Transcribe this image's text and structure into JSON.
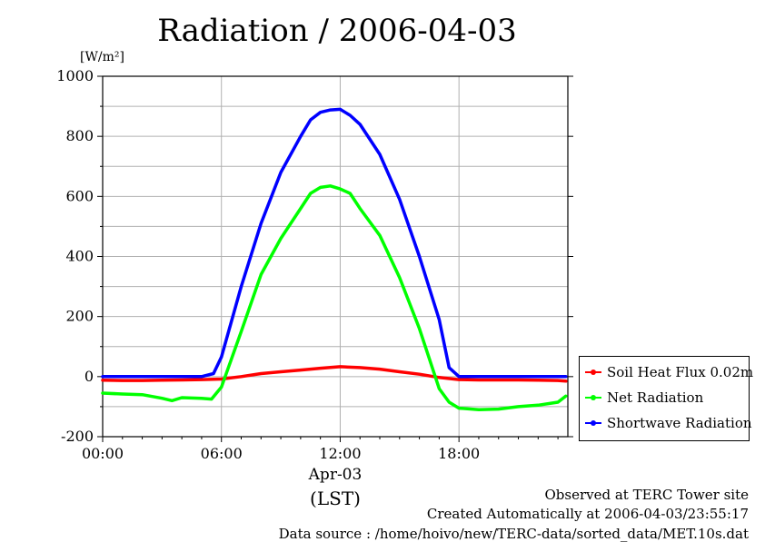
{
  "title": "Radiation / 2006-04-03",
  "unit_label": "[W/m²]",
  "date_label": "Apr-03",
  "tz_label": "(LST)",
  "footer": [
    "Observed at TERC Tower site",
    "Created Automatically at 2006-04-03/23:55:17",
    "Data source : /home/hoivo/new/TERC-data/sorted_data/MET.10s.dat"
  ],
  "chart_data": {
    "type": "line",
    "title": "Radiation / 2006-04-03",
    "ylabel": "[W/m²]",
    "xlabel": "(LST)",
    "xlim": [
      0,
      23.5
    ],
    "ylim": [
      -200,
      1000
    ],
    "xticks": [
      {
        "value": 0,
        "label": "00:00"
      },
      {
        "value": 6,
        "label": "06:00"
      },
      {
        "value": 12,
        "label": "12:00"
      },
      {
        "value": 18,
        "label": "18:00"
      }
    ],
    "yticks": [
      -200,
      0,
      200,
      400,
      600,
      800,
      1000
    ],
    "grid": true,
    "legend_position": "lower-right-outside",
    "series": [
      {
        "name": "Soil Heat Flux 0.02m",
        "color": "#ff0000",
        "x": [
          0,
          1,
          2,
          3,
          4,
          5,
          6,
          7,
          8,
          9,
          10,
          11,
          12,
          13,
          14,
          15,
          16,
          17,
          18,
          19,
          20,
          21,
          22,
          23,
          23.4
        ],
        "y": [
          -12,
          -13,
          -13,
          -12,
          -11,
          -10,
          -8,
          0,
          10,
          16,
          22,
          28,
          33,
          30,
          25,
          16,
          8,
          -3,
          -10,
          -11,
          -11,
          -11,
          -12,
          -13,
          -15
        ]
      },
      {
        "name": "Net Radiation",
        "color": "#00ff00",
        "x": [
          0,
          1,
          2,
          3,
          3.5,
          4,
          5,
          5.5,
          6,
          7,
          8,
          9,
          10,
          10.5,
          11,
          11.5,
          12,
          12.5,
          13,
          14,
          15,
          16,
          17,
          17.5,
          18,
          19,
          20,
          21,
          22,
          23,
          23.4
        ],
        "y": [
          -55,
          -58,
          -60,
          -72,
          -80,
          -70,
          -72,
          -75,
          -35,
          150,
          340,
          460,
          560,
          610,
          630,
          635,
          625,
          610,
          560,
          470,
          330,
          160,
          -40,
          -85,
          -105,
          -110,
          -108,
          -100,
          -95,
          -85,
          -65
        ]
      },
      {
        "name": "Shortwave Radiation",
        "color": "#0000ff",
        "x": [
          0,
          1,
          2,
          3,
          4,
          5,
          5.6,
          6,
          7,
          8,
          9,
          10,
          10.5,
          11,
          11.5,
          12,
          12.5,
          13,
          14,
          15,
          16,
          17,
          17.5,
          18,
          19,
          20,
          21,
          22,
          23,
          23.4
        ],
        "y": [
          0,
          0,
          0,
          0,
          0,
          0,
          10,
          65,
          300,
          510,
          680,
          800,
          855,
          880,
          888,
          890,
          870,
          840,
          740,
          590,
          400,
          190,
          30,
          0,
          0,
          0,
          0,
          0,
          0,
          0
        ]
      }
    ]
  }
}
